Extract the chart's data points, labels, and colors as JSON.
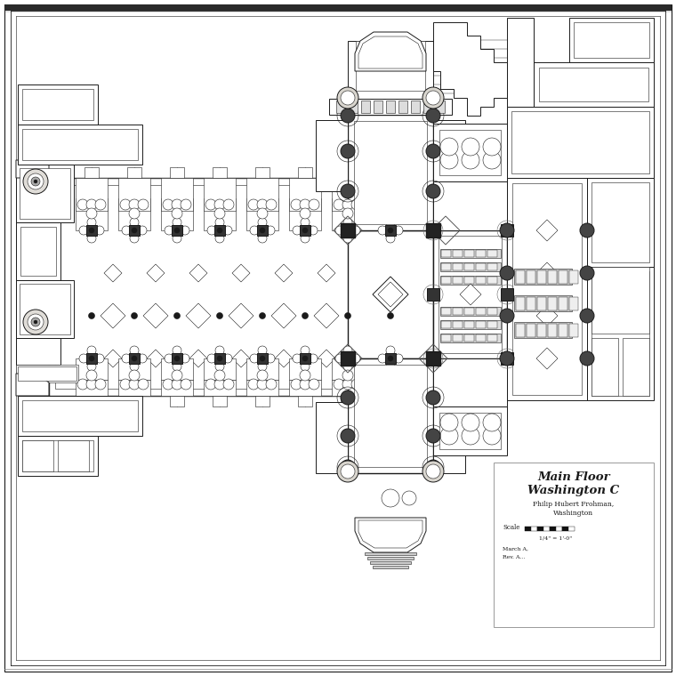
{
  "background_color": "#ffffff",
  "paper_color": "#f5f3ef",
  "line_color": "#1a1a1a",
  "thin_line": 0.4,
  "med_line": 0.7,
  "main_line": 1.0,
  "heavy_line": 1.5,
  "title_block": {
    "line1": "Main Floor",
    "line2": "Washington C",
    "line3": "Philip Hubert Frohman,",
    "line4": "Washington",
    "scale": "Scale",
    "date1": "March A,",
    "date2": "Rev. A..."
  },
  "top_bar_color": "#2a2a2a",
  "figsize": [
    7.6,
    7.6
  ],
  "dpi": 100
}
